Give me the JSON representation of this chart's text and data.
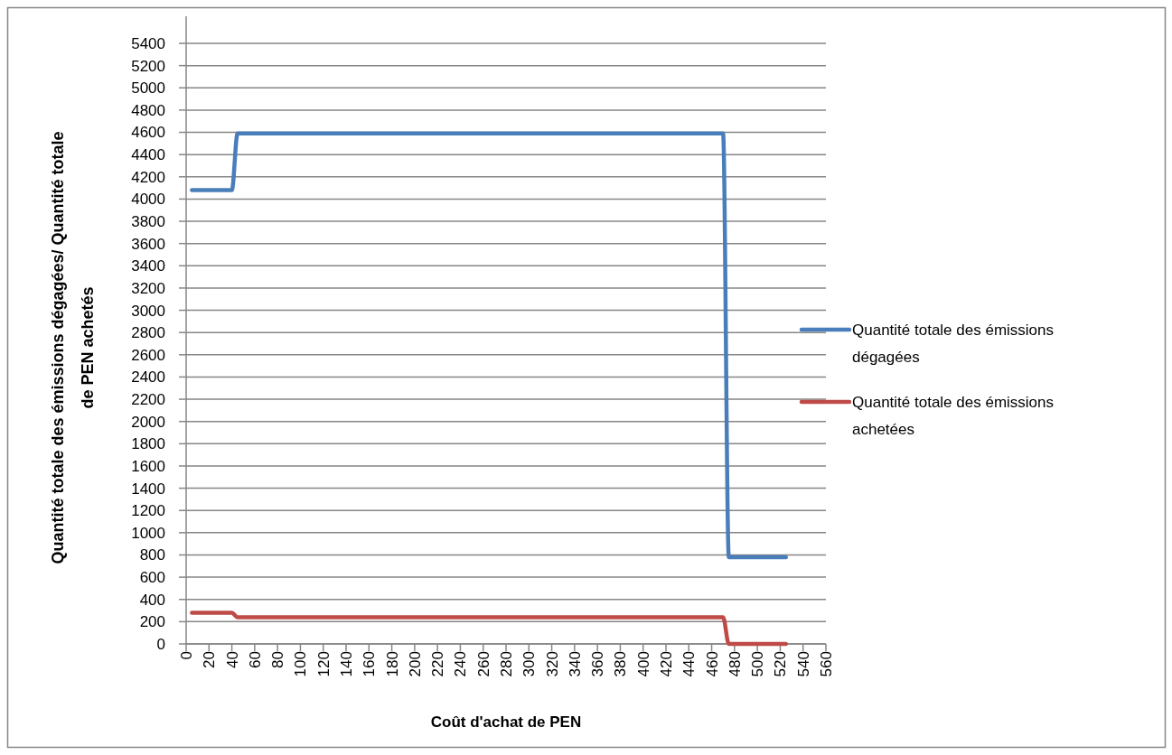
{
  "chart_data": {
    "type": "line",
    "xlabel": "Coût d'achat de PEN",
    "ylabel": "Quantité totale des émissions dégagées/ Quantité totale de PEN achetés",
    "series": [
      {
        "name": "Quantité totale des émissions dégagées",
        "color": "#4a7ebb",
        "x": [
          5,
          40,
          45,
          470,
          475,
          525
        ],
        "values": [
          4080,
          4080,
          4590,
          4590,
          780,
          780
        ]
      },
      {
        "name": "Quantité totale des émissions achetées",
        "color": "#be4b48",
        "x": [
          5,
          40,
          45,
          470,
          475,
          525
        ],
        "values": [
          280,
          280,
          240,
          240,
          0,
          0
        ]
      }
    ],
    "xlim": [
      0,
      560
    ],
    "xticks": [
      0,
      20,
      40,
      60,
      80,
      100,
      120,
      140,
      160,
      180,
      200,
      220,
      240,
      260,
      280,
      300,
      320,
      340,
      360,
      380,
      400,
      420,
      440,
      460,
      480,
      500,
      520,
      540,
      560
    ],
    "ylim": [
      0,
      5400
    ],
    "yticks": [
      0,
      200,
      400,
      600,
      800,
      1000,
      1200,
      1400,
      1600,
      1800,
      2000,
      2200,
      2400,
      2600,
      2800,
      3000,
      3200,
      3400,
      3600,
      3800,
      4000,
      4200,
      4400,
      4600,
      4800,
      5000,
      5200,
      5400
    ],
    "grid": "y",
    "legend": "right",
    "marker": "none",
    "line_style": "solid"
  }
}
